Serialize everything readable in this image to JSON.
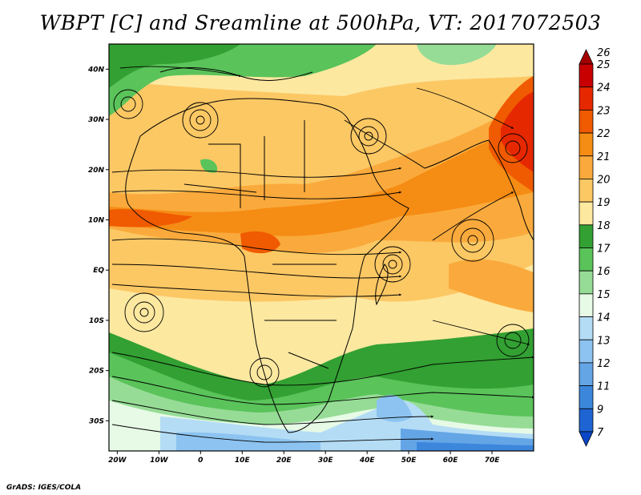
{
  "title": "WBPT [C] and Sreamline at 500hPa, VT: 2017072503",
  "credit": "GrADS: IGES/COLA",
  "axes": {
    "lon_labels": [
      "20W",
      "10W",
      "0",
      "10E",
      "20E",
      "30E",
      "40E",
      "50E",
      "60E",
      "70E"
    ],
    "lon_values": [
      -20,
      -10,
      0,
      10,
      20,
      30,
      40,
      50,
      60,
      70
    ],
    "lat_labels": [
      "40N",
      "30N",
      "20N",
      "10N",
      "EQ",
      "10S",
      "20S",
      "30S"
    ],
    "lat_values": [
      40,
      30,
      20,
      10,
      0,
      -10,
      -20,
      -30
    ],
    "lon_range": [
      -22,
      80
    ],
    "lat_range": [
      -36,
      45
    ]
  },
  "colorbar": {
    "labels": [
      "26",
      "25",
      "24",
      "23",
      "22",
      "21",
      "20",
      "19",
      "18",
      "17",
      "16",
      "15",
      "14",
      "13",
      "12",
      "11",
      "9",
      "7"
    ],
    "colors": [
      "#a50000",
      "#c80000",
      "#e62800",
      "#f05a00",
      "#f58c14",
      "#faaa3c",
      "#fcc864",
      "#fde8a0",
      "#32a032",
      "#5ac35a",
      "#96dc96",
      "#e6fae6",
      "#b4dcf5",
      "#8cc3f0",
      "#64a5e6",
      "#3c87dc",
      "#1e64d2",
      "#0a46c8"
    ]
  }
}
